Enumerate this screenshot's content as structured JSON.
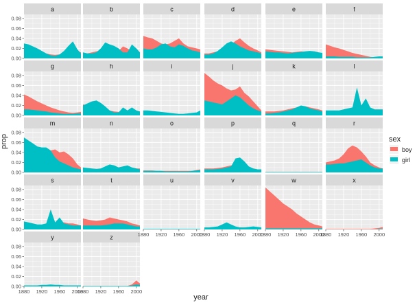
{
  "chart_data": {
    "type": "area",
    "facet_by": "letter",
    "panels": [
      "a",
      "b",
      "c",
      "d",
      "e",
      "f",
      "g",
      "h",
      "i",
      "j",
      "k",
      "l",
      "m",
      "n",
      "o",
      "p",
      "q",
      "r",
      "s",
      "t",
      "u",
      "v",
      "w",
      "x",
      "y",
      "z"
    ],
    "x": [
      1880,
      1890,
      1900,
      1910,
      1920,
      1930,
      1940,
      1950,
      1960,
      1970,
      1980,
      1990,
      2000,
      2008
    ],
    "xlabel": "year",
    "ylabel": "prop",
    "xlim": [
      1880,
      2008
    ],
    "ylim": [
      0,
      0.088
    ],
    "x_ticks": [
      1880,
      1920,
      1960,
      2000
    ],
    "x_tick_labels": [
      "1880",
      "1920",
      "1960",
      "2000"
    ],
    "y_ticks": [
      0.0,
      0.02,
      0.04,
      0.06,
      0.08
    ],
    "y_tick_labels": [
      "0.00",
      "0.02",
      "0.04",
      "0.06",
      "0.08"
    ],
    "legend": {
      "title": "sex",
      "position": "right",
      "items": [
        {
          "label": "boy",
          "color": "#F8766D"
        },
        {
          "label": "girl",
          "color": "#00BFC4"
        }
      ]
    },
    "grid": true,
    "colors": {
      "boy": "#F8766D",
      "girl": "#00BFC4",
      "panel_bg": "#EBEBEB",
      "strip_bg": "#D9D9D9",
      "gridline": "#FFFFFF"
    },
    "series": {
      "a": {
        "boy": [
          0.018,
          0.017,
          0.016,
          0.014,
          0.012,
          0.01,
          0.008,
          0.007,
          0.008,
          0.012,
          0.016,
          0.018,
          0.015,
          0.012
        ],
        "girl": [
          0.03,
          0.028,
          0.024,
          0.02,
          0.015,
          0.01,
          0.006,
          0.005,
          0.008,
          0.015,
          0.025,
          0.034,
          0.018,
          0.01
        ]
      },
      "b": {
        "boy": [
          0.01,
          0.01,
          0.012,
          0.014,
          0.016,
          0.02,
          0.025,
          0.02,
          0.015,
          0.024,
          0.02,
          0.015,
          0.01,
          0.008
        ],
        "girl": [
          0.012,
          0.01,
          0.01,
          0.012,
          0.02,
          0.032,
          0.028,
          0.025,
          0.02,
          0.012,
          0.012,
          0.028,
          0.02,
          0.012
        ]
      },
      "c": {
        "boy": [
          0.045,
          0.042,
          0.04,
          0.035,
          0.03,
          0.028,
          0.03,
          0.035,
          0.04,
          0.03,
          0.024,
          0.022,
          0.02,
          0.018
        ],
        "girl": [
          0.02,
          0.018,
          0.018,
          0.022,
          0.028,
          0.03,
          0.024,
          0.022,
          0.028,
          0.025,
          0.02,
          0.016,
          0.014,
          0.012
        ]
      },
      "d": {
        "boy": [
          0.01,
          0.01,
          0.012,
          0.014,
          0.02,
          0.03,
          0.028,
          0.035,
          0.04,
          0.032,
          0.025,
          0.02,
          0.016,
          0.012
        ],
        "girl": [
          0.008,
          0.008,
          0.01,
          0.015,
          0.022,
          0.03,
          0.034,
          0.03,
          0.024,
          0.02,
          0.016,
          0.014,
          0.012,
          0.01
        ]
      },
      "e": {
        "boy": [
          0.018,
          0.017,
          0.016,
          0.015,
          0.014,
          0.013,
          0.012,
          0.013,
          0.014,
          0.013,
          0.012,
          0.011,
          0.01,
          0.01
        ],
        "girl": [
          0.014,
          0.013,
          0.012,
          0.012,
          0.011,
          0.01,
          0.011,
          0.012,
          0.013,
          0.014,
          0.015,
          0.014,
          0.012,
          0.011
        ]
      },
      "f": {
        "boy": [
          0.028,
          0.025,
          0.022,
          0.02,
          0.017,
          0.014,
          0.011,
          0.009,
          0.007,
          0.005,
          0.003,
          0.002,
          0.002,
          0.002
        ],
        "girl": [
          0.004,
          0.004,
          0.004,
          0.003,
          0.003,
          0.003,
          0.003,
          0.002,
          0.002,
          0.002,
          0.002,
          0.003,
          0.004,
          0.004
        ]
      },
      "g": {
        "boy": [
          0.042,
          0.038,
          0.033,
          0.028,
          0.024,
          0.02,
          0.016,
          0.013,
          0.01,
          0.008,
          0.006,
          0.005,
          0.006,
          0.007
        ],
        "girl": [
          0.012,
          0.012,
          0.011,
          0.01,
          0.009,
          0.008,
          0.006,
          0.005,
          0.004,
          0.003,
          0.003,
          0.003,
          0.004,
          0.004
        ]
      },
      "h": {
        "boy": [
          0.022,
          0.02,
          0.018,
          0.016,
          0.014,
          0.012,
          0.01,
          0.008,
          0.007,
          0.006,
          0.005,
          0.005,
          0.005,
          0.005
        ],
        "girl": [
          0.02,
          0.024,
          0.028,
          0.03,
          0.025,
          0.018,
          0.01,
          0.006,
          0.006,
          0.016,
          0.01,
          0.016,
          0.01,
          0.008
        ]
      },
      "i": {
        "boy": [
          0.004,
          0.004,
          0.004,
          0.003,
          0.003,
          0.003,
          0.002,
          0.002,
          0.002,
          0.002,
          0.002,
          0.003,
          0.004,
          0.008
        ],
        "girl": [
          0.01,
          0.01,
          0.009,
          0.008,
          0.007,
          0.006,
          0.005,
          0.004,
          0.003,
          0.003,
          0.004,
          0.005,
          0.006,
          0.01
        ]
      },
      "j": {
        "boy": [
          0.085,
          0.078,
          0.07,
          0.064,
          0.06,
          0.054,
          0.05,
          0.052,
          0.058,
          0.045,
          0.038,
          0.028,
          0.018,
          0.01
        ],
        "girl": [
          0.03,
          0.028,
          0.026,
          0.024,
          0.022,
          0.028,
          0.034,
          0.04,
          0.036,
          0.028,
          0.02,
          0.014,
          0.01,
          0.008
        ]
      },
      "k": {
        "boy": [
          0.008,
          0.008,
          0.008,
          0.009,
          0.01,
          0.012,
          0.014,
          0.016,
          0.018,
          0.018,
          0.016,
          0.014,
          0.012,
          0.01
        ],
        "girl": [
          0.004,
          0.004,
          0.005,
          0.006,
          0.008,
          0.01,
          0.012,
          0.016,
          0.02,
          0.018,
          0.014,
          0.012,
          0.01,
          0.008
        ]
      },
      "l": {
        "boy": [
          0.006,
          0.006,
          0.006,
          0.006,
          0.006,
          0.006,
          0.006,
          0.006,
          0.007,
          0.007,
          0.007,
          0.007,
          0.006,
          0.006
        ],
        "girl": [
          0.01,
          0.01,
          0.01,
          0.01,
          0.012,
          0.014,
          0.016,
          0.056,
          0.02,
          0.034,
          0.016,
          0.012,
          0.012,
          0.012
        ]
      },
      "m": {
        "boy": [
          0.05,
          0.048,
          0.046,
          0.044,
          0.042,
          0.042,
          0.044,
          0.046,
          0.04,
          0.042,
          0.036,
          0.028,
          0.016,
          0.01
        ],
        "girl": [
          0.07,
          0.064,
          0.058,
          0.052,
          0.05,
          0.05,
          0.044,
          0.03,
          0.022,
          0.018,
          0.014,
          0.01,
          0.008,
          0.006
        ]
      },
      "n": {
        "boy": [
          0.008,
          0.008,
          0.007,
          0.007,
          0.006,
          0.006,
          0.007,
          0.008,
          0.01,
          0.012,
          0.012,
          0.01,
          0.008,
          0.008
        ],
        "girl": [
          0.01,
          0.009,
          0.008,
          0.007,
          0.008,
          0.012,
          0.016,
          0.014,
          0.01,
          0.012,
          0.014,
          0.01,
          0.008,
          0.006
        ]
      },
      "o": {
        "boy": [
          0.004,
          0.004,
          0.004,
          0.003,
          0.003,
          0.003,
          0.003,
          0.003,
          0.003,
          0.003,
          0.003,
          0.003,
          0.005,
          0.006
        ],
        "girl": [
          0.003,
          0.003,
          0.003,
          0.003,
          0.003,
          0.002,
          0.002,
          0.002,
          0.002,
          0.002,
          0.002,
          0.003,
          0.004,
          0.005
        ]
      },
      "p": {
        "boy": [
          0.008,
          0.008,
          0.008,
          0.009,
          0.01,
          0.012,
          0.014,
          0.016,
          0.018,
          0.014,
          0.01,
          0.008,
          0.006,
          0.006
        ],
        "girl": [
          0.006,
          0.006,
          0.006,
          0.007,
          0.008,
          0.01,
          0.012,
          0.028,
          0.03,
          0.022,
          0.012,
          0.008,
          0.006,
          0.006
        ]
      },
      "q": {
        "boy": [
          0.001,
          0.001,
          0.001,
          0.001,
          0.001,
          0.001,
          0.001,
          0.001,
          0.001,
          0.001,
          0.001,
          0.001,
          0.001,
          0.001
        ],
        "girl": [
          0.001,
          0.001,
          0.001,
          0.001,
          0.001,
          0.001,
          0.001,
          0.001,
          0.001,
          0.001,
          0.001,
          0.001,
          0.001,
          0.001
        ]
      },
      "r": {
        "boy": [
          0.02,
          0.022,
          0.024,
          0.028,
          0.036,
          0.048,
          0.054,
          0.05,
          0.042,
          0.032,
          0.02,
          0.014,
          0.01,
          0.008
        ],
        "girl": [
          0.016,
          0.016,
          0.017,
          0.018,
          0.018,
          0.02,
          0.022,
          0.024,
          0.026,
          0.02,
          0.014,
          0.01,
          0.008,
          0.008
        ]
      },
      "s": {
        "boy": [
          0.01,
          0.01,
          0.009,
          0.009,
          0.008,
          0.008,
          0.008,
          0.01,
          0.014,
          0.014,
          0.012,
          0.012,
          0.01,
          0.008
        ],
        "girl": [
          0.016,
          0.014,
          0.012,
          0.01,
          0.01,
          0.012,
          0.04,
          0.014,
          0.024,
          0.012,
          0.01,
          0.008,
          0.008,
          0.008
        ]
      },
      "t": {
        "boy": [
          0.022,
          0.02,
          0.018,
          0.017,
          0.018,
          0.02,
          0.024,
          0.022,
          0.02,
          0.018,
          0.016,
          0.012,
          0.01,
          0.008
        ],
        "girl": [
          0.008,
          0.008,
          0.008,
          0.008,
          0.008,
          0.009,
          0.01,
          0.012,
          0.012,
          0.012,
          0.01,
          0.008,
          0.006,
          0.006
        ]
      },
      "u": {
        "boy": [
          0.001,
          0.001,
          0.001,
          0.001,
          0.001,
          0.001,
          0.001,
          0.001,
          0.001,
          0.001,
          0.001,
          0.001,
          0.001,
          0.001
        ],
        "girl": [
          0.001,
          0.001,
          0.001,
          0.001,
          0.001,
          0.001,
          0.001,
          0.001,
          0.001,
          0.001,
          0.001,
          0.001,
          0.001,
          0.001
        ]
      },
      "v": {
        "boy": [
          0.004,
          0.004,
          0.004,
          0.005,
          0.006,
          0.007,
          0.006,
          0.005,
          0.004,
          0.004,
          0.004,
          0.004,
          0.004,
          0.004
        ],
        "girl": [
          0.004,
          0.004,
          0.005,
          0.006,
          0.01,
          0.014,
          0.01,
          0.006,
          0.004,
          0.004,
          0.005,
          0.006,
          0.005,
          0.004
        ]
      },
      "w": {
        "boy": [
          0.084,
          0.076,
          0.068,
          0.06,
          0.052,
          0.046,
          0.04,
          0.032,
          0.026,
          0.02,
          0.014,
          0.01,
          0.008,
          0.006
        ],
        "girl": [
          0.002,
          0.002,
          0.002,
          0.002,
          0.002,
          0.002,
          0.002,
          0.002,
          0.002,
          0.002,
          0.002,
          0.002,
          0.002,
          0.002
        ]
      },
      "x": {
        "boy": [
          0.001,
          0.001,
          0.001,
          0.001,
          0.001,
          0.001,
          0.001,
          0.001,
          0.001,
          0.001,
          0.001,
          0.002,
          0.003,
          0.005
        ],
        "girl": [
          0.0,
          0.0,
          0.0,
          0.0,
          0.0,
          0.0,
          0.0,
          0.0,
          0.0,
          0.0,
          0.0,
          0.0,
          0.001,
          0.001
        ]
      },
      "y": {
        "boy": [
          0.002,
          0.002,
          0.002,
          0.002,
          0.002,
          0.002,
          0.002,
          0.002,
          0.002,
          0.002,
          0.002,
          0.002,
          0.002,
          0.002
        ],
        "girl": [
          0.002,
          0.002,
          0.002,
          0.002,
          0.003,
          0.003,
          0.004,
          0.003,
          0.003,
          0.002,
          0.002,
          0.002,
          0.002,
          0.002
        ]
      },
      "z": {
        "boy": [
          0.001,
          0.001,
          0.001,
          0.001,
          0.001,
          0.001,
          0.001,
          0.001,
          0.001,
          0.001,
          0.001,
          0.004,
          0.012,
          0.006
        ],
        "girl": [
          0.001,
          0.001,
          0.001,
          0.001,
          0.001,
          0.001,
          0.001,
          0.001,
          0.001,
          0.001,
          0.001,
          0.002,
          0.004,
          0.003
        ]
      }
    }
  }
}
